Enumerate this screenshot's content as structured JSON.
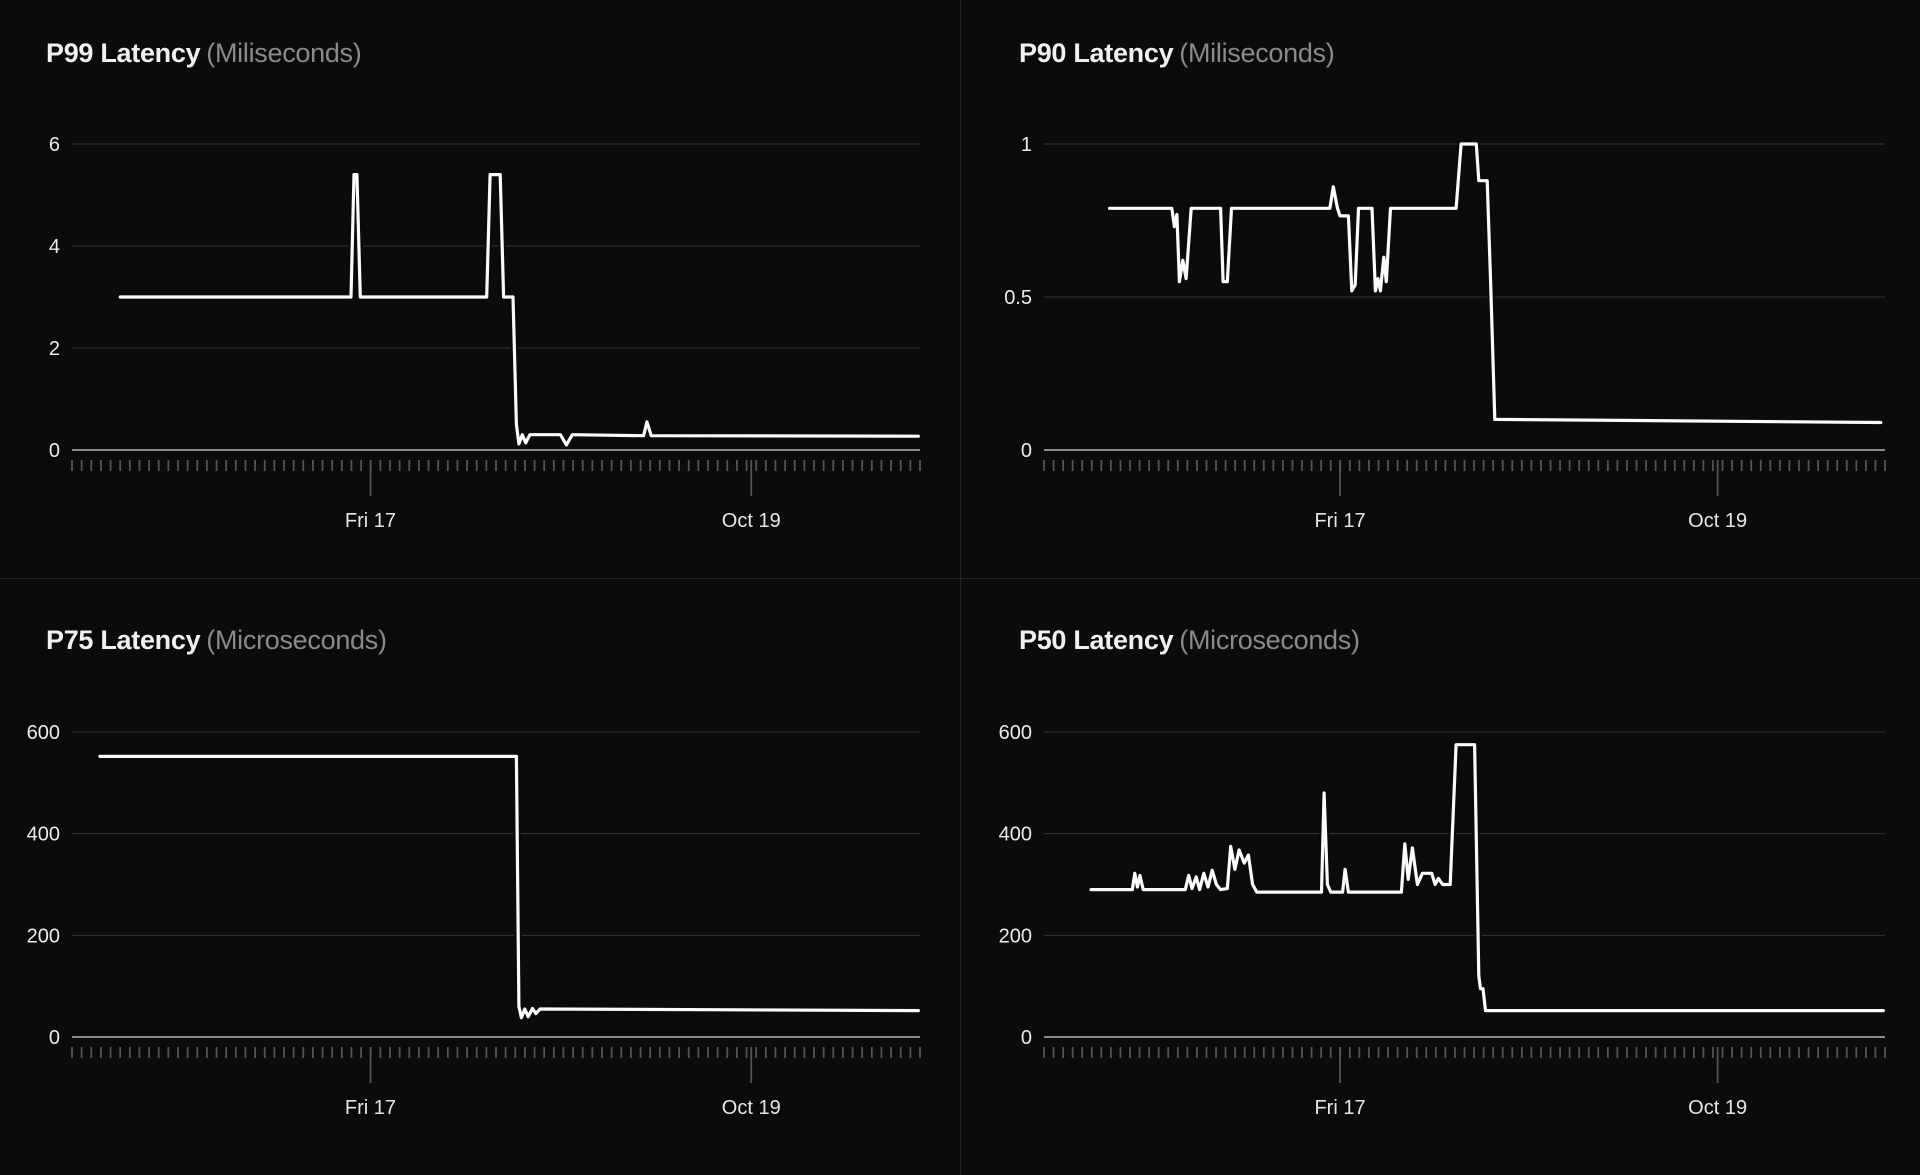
{
  "style": {
    "background": "#0b0b0b",
    "divider_color": "#242424",
    "title_color": "#f0f0f0",
    "subtitle_color": "#8a8a8a",
    "grid_color": "#333333",
    "zero_axis_color": "#8a8a8a",
    "tick_color": "#545454",
    "y_label_color": "#ececec",
    "x_label_color": "#e6e6e6",
    "line_color": "#fafafa"
  },
  "chart_data": [
    {
      "type": "line",
      "title": "P99 Latency",
      "subtitle": "(Miliseconds)",
      "unit": "Miliseconds",
      "ylim": [
        0,
        6
      ],
      "grid": true,
      "legend": "none",
      "y_ticks": [
        {
          "v": 0,
          "label": "0"
        },
        {
          "v": 2,
          "label": "2"
        },
        {
          "v": 4,
          "label": "4"
        },
        {
          "v": 6,
          "label": "6"
        }
      ],
      "x_tick_labels": [
        {
          "f": 0.352,
          "label": "Fri 17"
        },
        {
          "f": 0.801,
          "label": "Oct 19"
        }
      ],
      "x_note": "x values are fraction of plotted time range",
      "points": [
        [
          0.057,
          3
        ],
        [
          0.329,
          3
        ],
        [
          0.3325,
          5.4
        ],
        [
          0.336,
          5.4
        ],
        [
          0.34,
          3
        ],
        [
          0.489,
          3
        ],
        [
          0.493,
          5.4
        ],
        [
          0.505,
          5.4
        ],
        [
          0.509,
          3
        ],
        [
          0.52,
          3
        ],
        [
          0.524,
          0.5
        ],
        [
          0.527,
          0.12
        ],
        [
          0.531,
          0.3
        ],
        [
          0.535,
          0.14
        ],
        [
          0.54,
          0.3
        ],
        [
          0.576,
          0.3
        ],
        [
          0.583,
          0.1
        ],
        [
          0.59,
          0.3
        ],
        [
          0.674,
          0.28
        ],
        [
          0.678,
          0.55
        ],
        [
          0.683,
          0.28
        ],
        [
          0.998,
          0.27
        ]
      ]
    },
    {
      "type": "line",
      "title": "P90 Latency",
      "subtitle": "(Miliseconds)",
      "unit": "Miliseconds",
      "ylim": [
        0,
        1
      ],
      "grid": true,
      "legend": "none",
      "y_ticks": [
        {
          "v": 0,
          "label": "0"
        },
        {
          "v": 0.5,
          "label": "0.5"
        },
        {
          "v": 1,
          "label": "1"
        }
      ],
      "x_tick_labels": [
        {
          "f": 0.352,
          "label": "Fri 17"
        },
        {
          "f": 0.801,
          "label": "Oct 19"
        }
      ],
      "x_note": "x values are fraction of plotted time range",
      "points": [
        [
          0.078,
          0.79
        ],
        [
          0.152,
          0.79
        ],
        [
          0.155,
          0.73
        ],
        [
          0.158,
          0.77
        ],
        [
          0.161,
          0.55
        ],
        [
          0.165,
          0.62
        ],
        [
          0.169,
          0.56
        ],
        [
          0.175,
          0.79
        ],
        [
          0.21,
          0.79
        ],
        [
          0.213,
          0.55
        ],
        [
          0.218,
          0.55
        ],
        [
          0.223,
          0.79
        ],
        [
          0.34,
          0.79
        ],
        [
          0.344,
          0.86
        ],
        [
          0.349,
          0.79
        ],
        [
          0.352,
          0.765
        ],
        [
          0.362,
          0.765
        ],
        [
          0.366,
          0.52
        ],
        [
          0.37,
          0.54
        ],
        [
          0.374,
          0.79
        ],
        [
          0.39,
          0.79
        ],
        [
          0.394,
          0.52
        ],
        [
          0.397,
          0.56
        ],
        [
          0.4,
          0.52
        ],
        [
          0.404,
          0.63
        ],
        [
          0.407,
          0.55
        ],
        [
          0.412,
          0.79
        ],
        [
          0.49,
          0.79
        ],
        [
          0.496,
          1.0
        ],
        [
          0.514,
          1.0
        ],
        [
          0.517,
          0.88
        ],
        [
          0.527,
          0.88
        ],
        [
          0.531,
          0.55
        ],
        [
          0.536,
          0.1
        ],
        [
          0.995,
          0.09
        ]
      ]
    },
    {
      "type": "line",
      "title": "P75 Latency",
      "subtitle": "(Microseconds)",
      "unit": "Microseconds",
      "ylim": [
        0,
        600
      ],
      "grid": true,
      "legend": "none",
      "y_ticks": [
        {
          "v": 0,
          "label": "0"
        },
        {
          "v": 200,
          "label": "200"
        },
        {
          "v": 400,
          "label": "400"
        },
        {
          "v": 600,
          "label": "600"
        }
      ],
      "x_tick_labels": [
        {
          "f": 0.352,
          "label": "Fri 17"
        },
        {
          "f": 0.801,
          "label": "Oct 19"
        }
      ],
      "x_note": "x values are fraction of plotted time range",
      "points": [
        [
          0.033,
          552
        ],
        [
          0.524,
          552
        ],
        [
          0.527,
          60
        ],
        [
          0.53,
          38
        ],
        [
          0.534,
          55
        ],
        [
          0.538,
          40
        ],
        [
          0.543,
          56
        ],
        [
          0.547,
          46
        ],
        [
          0.552,
          55
        ],
        [
          0.998,
          52
        ]
      ]
    },
    {
      "type": "line",
      "title": "P50 Latency",
      "subtitle": "(Microseconds)",
      "unit": "Microseconds",
      "ylim": [
        0,
        600
      ],
      "grid": true,
      "legend": "none",
      "y_ticks": [
        {
          "v": 0,
          "label": "0"
        },
        {
          "v": 200,
          "label": "200"
        },
        {
          "v": 400,
          "label": "400"
        },
        {
          "v": 600,
          "label": "600"
        }
      ],
      "x_tick_labels": [
        {
          "f": 0.352,
          "label": "Fri 17"
        },
        {
          "f": 0.801,
          "label": "Oct 19"
        }
      ],
      "x_note": "x values are fraction of plotted time range",
      "points": [
        [
          0.056,
          290
        ],
        [
          0.105,
          290
        ],
        [
          0.108,
          322
        ],
        [
          0.111,
          295
        ],
        [
          0.114,
          318
        ],
        [
          0.118,
          290
        ],
        [
          0.168,
          290
        ],
        [
          0.172,
          318
        ],
        [
          0.176,
          292
        ],
        [
          0.181,
          315
        ],
        [
          0.185,
          290
        ],
        [
          0.19,
          322
        ],
        [
          0.195,
          295
        ],
        [
          0.2,
          328
        ],
        [
          0.205,
          300
        ],
        [
          0.21,
          290
        ],
        [
          0.218,
          292
        ],
        [
          0.222,
          375
        ],
        [
          0.227,
          330
        ],
        [
          0.232,
          368
        ],
        [
          0.238,
          342
        ],
        [
          0.243,
          358
        ],
        [
          0.248,
          300
        ],
        [
          0.253,
          285
        ],
        [
          0.33,
          285
        ],
        [
          0.333,
          480
        ],
        [
          0.337,
          300
        ],
        [
          0.341,
          285
        ],
        [
          0.355,
          285
        ],
        [
          0.358,
          330
        ],
        [
          0.362,
          285
        ],
        [
          0.425,
          285
        ],
        [
          0.429,
          380
        ],
        [
          0.433,
          310
        ],
        [
          0.438,
          372
        ],
        [
          0.444,
          300
        ],
        [
          0.45,
          322
        ],
        [
          0.461,
          322
        ],
        [
          0.465,
          300
        ],
        [
          0.469,
          312
        ],
        [
          0.474,
          300
        ],
        [
          0.483,
          300
        ],
        [
          0.49,
          575
        ],
        [
          0.512,
          575
        ],
        [
          0.517,
          120
        ],
        [
          0.519,
          95
        ],
        [
          0.522,
          95
        ],
        [
          0.525,
          52
        ],
        [
          0.998,
          52
        ]
      ]
    }
  ]
}
